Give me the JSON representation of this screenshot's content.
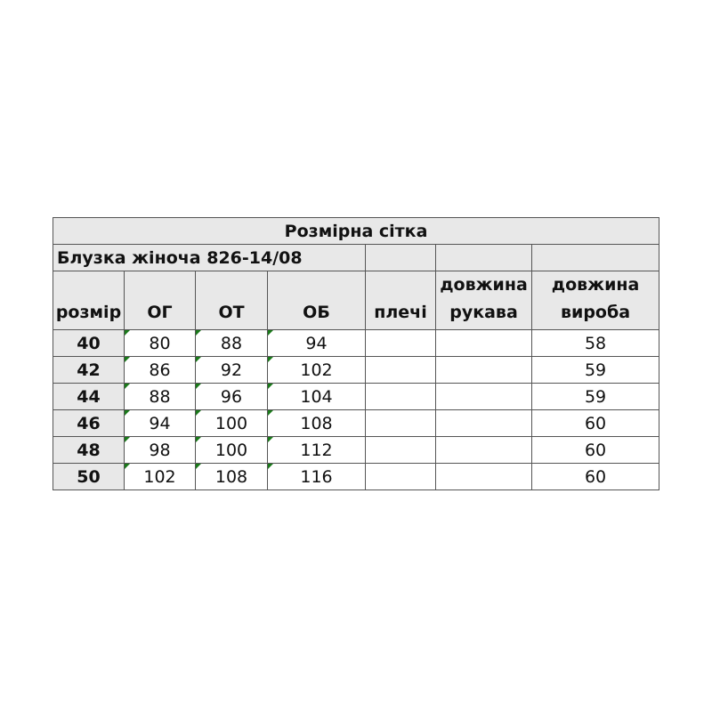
{
  "title": "Розмірна сітка",
  "product": "Блузка жіноча 826-14/08",
  "columns": [
    "розмір",
    "ОГ",
    "ОТ",
    "ОБ",
    "плечі",
    "довжина рукава",
    "довжина виробу"
  ],
  "column_lines": {
    "sleeve": [
      "довжина",
      "рукава"
    ],
    "length": [
      "довжина",
      "вироба"
    ]
  },
  "rows": [
    [
      "40",
      "80",
      "88",
      "94",
      "",
      "",
      "58"
    ],
    [
      "42",
      "86",
      "92",
      "102",
      "",
      "",
      "59"
    ],
    [
      "44",
      "88",
      "96",
      "104",
      "",
      "",
      "59"
    ],
    [
      "46",
      "94",
      "100",
      "108",
      "",
      "",
      "60"
    ],
    [
      "48",
      "98",
      "100",
      "112",
      "",
      "",
      "60"
    ],
    [
      "50",
      "102",
      "108",
      "116",
      "",
      "",
      "60"
    ]
  ],
  "colors": {
    "header_bg": "#e8e8e8",
    "border": "#555555",
    "marker": "#1a7a1a"
  }
}
